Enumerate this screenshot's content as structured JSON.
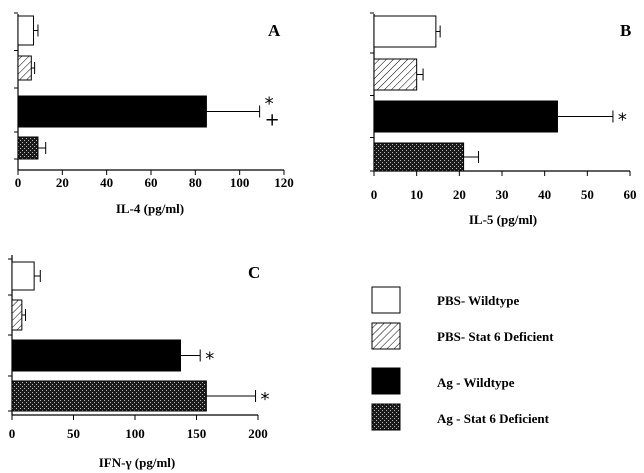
{
  "chart_data": [
    {
      "type": "bar",
      "orientation": "horizontal",
      "panel": "A",
      "xlabel": "IL-4 (pg/ml)",
      "xlim": [
        0,
        120
      ],
      "ticks": [
        "0",
        "20",
        "40",
        "60",
        "80",
        "100",
        "120"
      ],
      "series": [
        {
          "name": "PBS- Wildtype",
          "value": 7,
          "error": 2,
          "annotation": ""
        },
        {
          "name": "PBS- Stat 6 Deficient",
          "value": 6,
          "error": 1.5,
          "annotation": ""
        },
        {
          "name": "Ag - Wildtype",
          "value": 85,
          "error": 24,
          "annotation": "*\n+"
        },
        {
          "name": "Ag - Stat 6 Deficient",
          "value": 9,
          "error": 3.5,
          "annotation": ""
        }
      ]
    },
    {
      "type": "bar",
      "orientation": "horizontal",
      "panel": "B",
      "xlabel": "IL-5 (pg/ml)",
      "xlim": [
        0,
        60
      ],
      "ticks": [
        "0",
        "10",
        "20",
        "30",
        "40",
        "50",
        "60"
      ],
      "series": [
        {
          "name": "PBS- Wildtype",
          "value": 14.5,
          "error": 1,
          "annotation": ""
        },
        {
          "name": "PBS- Stat 6 Deficient",
          "value": 10,
          "error": 1.5,
          "annotation": ""
        },
        {
          "name": "Ag - Wildtype",
          "value": 43,
          "error": 13,
          "annotation": "*"
        },
        {
          "name": "Ag - Stat 6 Deficient",
          "value": 21,
          "error": 3.5,
          "annotation": ""
        }
      ]
    },
    {
      "type": "bar",
      "orientation": "horizontal",
      "panel": "C",
      "xlabel": "IFN-γ (pg/ml)",
      "xlim": [
        0,
        200
      ],
      "ticks": [
        "0",
        "50",
        "100",
        "150",
        "200"
      ],
      "series": [
        {
          "name": "PBS- Wildtype",
          "value": 18,
          "error": 5,
          "annotation": ""
        },
        {
          "name": "PBS- Stat 6 Deficient",
          "value": 8,
          "error": 3,
          "annotation": ""
        },
        {
          "name": "Ag - Wildtype",
          "value": 137,
          "error": 16,
          "annotation": "*"
        },
        {
          "name": "Ag - Stat 6 Deficient",
          "value": 158,
          "error": 40,
          "annotation": "*"
        }
      ]
    }
  ],
  "legend": {
    "items": [
      {
        "label": "PBS- Wildtype",
        "fill": "white"
      },
      {
        "label": "PBS- Stat 6 Deficient",
        "fill": "hatch"
      },
      {
        "label": "Ag - Wildtype",
        "fill": "solid"
      },
      {
        "label": "Ag - Stat 6 Deficient",
        "fill": "checker"
      }
    ]
  }
}
